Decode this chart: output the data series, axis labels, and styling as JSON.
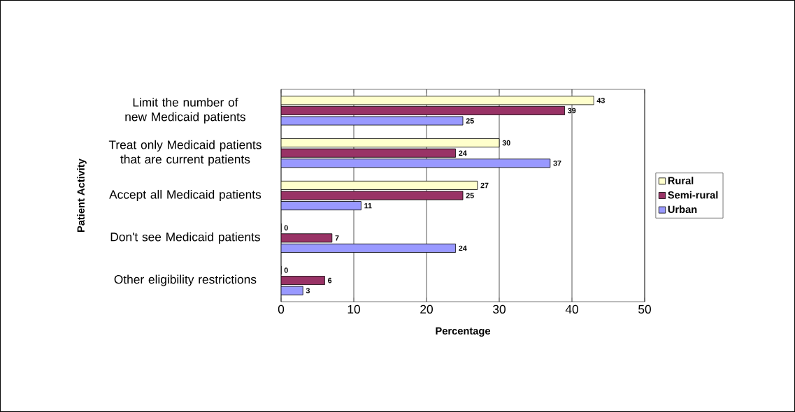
{
  "chart_data": {
    "type": "bar",
    "orientation": "horizontal",
    "xlabel": "Percentage",
    "ylabel": "Patient Activity",
    "categories": [
      "Limit the number of new Medicaid patients",
      "Treat only Medicaid patients that are current patients",
      "Accept all Medicaid patients",
      "Don't see Medicaid patients",
      "Other eligibility restrictions"
    ],
    "series": [
      {
        "name": "Rural",
        "color": "#ffffcc",
        "values": [
          43,
          30,
          27,
          0,
          0
        ]
      },
      {
        "name": "Semi-rural",
        "color": "#993366",
        "values": [
          39,
          24,
          25,
          7,
          6
        ]
      },
      {
        "name": "Urban",
        "color": "#9999ff",
        "values": [
          25,
          37,
          11,
          24,
          3
        ]
      }
    ],
    "xlim": [
      0,
      50
    ],
    "xticks": [
      0,
      10,
      20,
      30,
      40,
      50
    ],
    "grid": "x",
    "legend": "right",
    "data_labels": true
  }
}
